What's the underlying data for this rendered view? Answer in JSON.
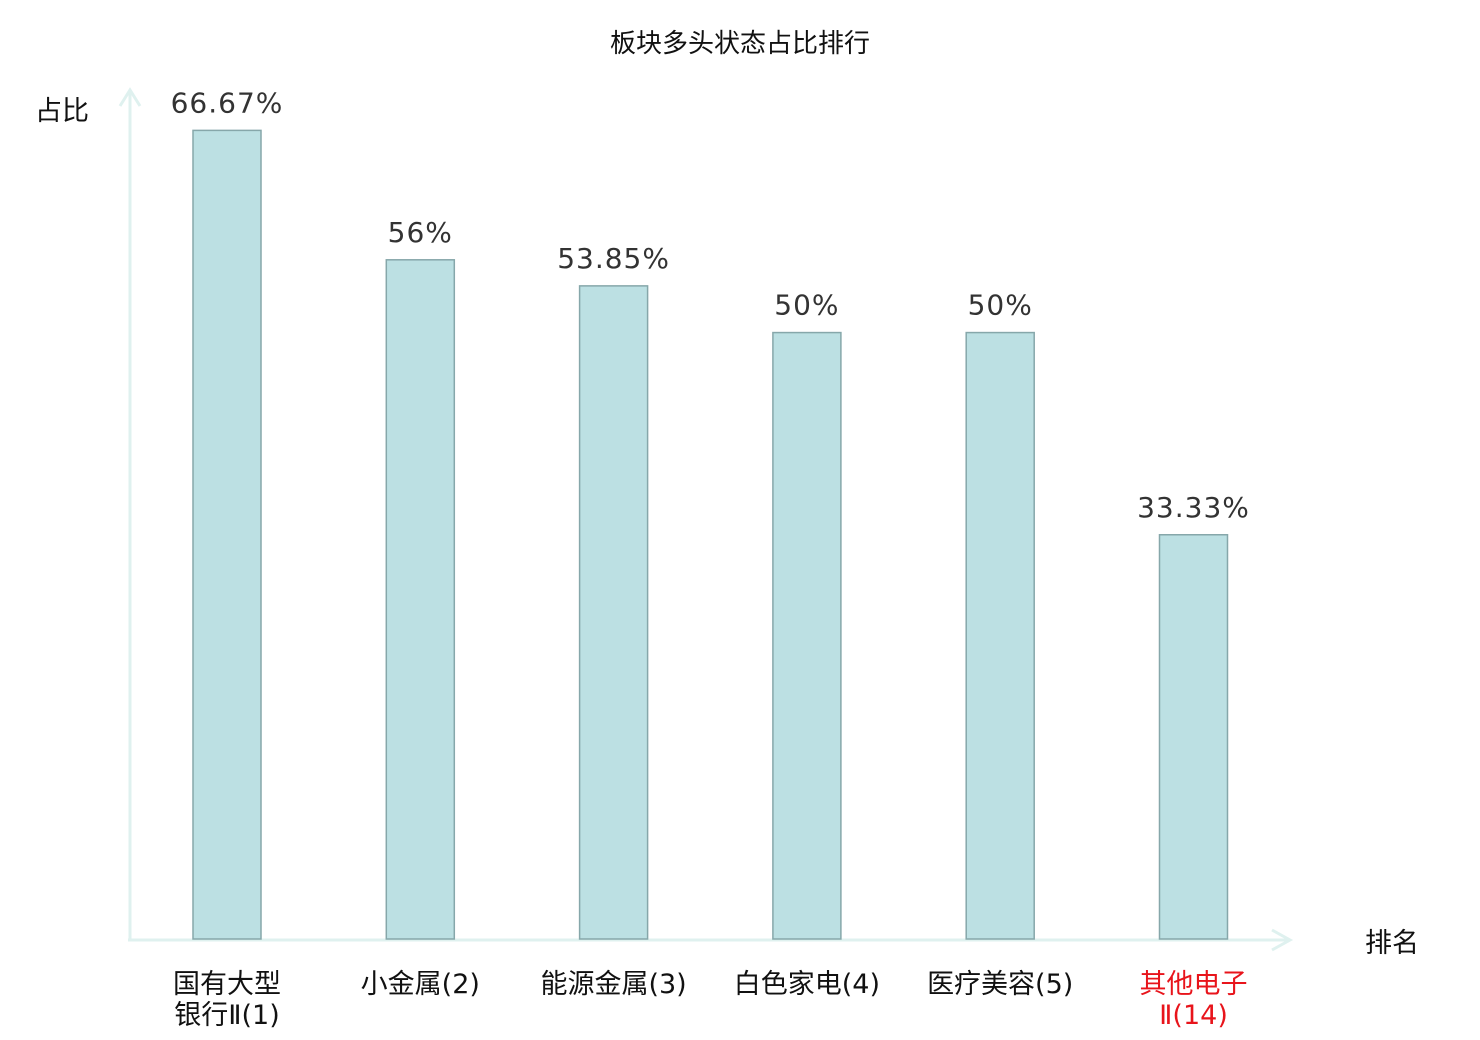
{
  "chart_data": {
    "type": "bar",
    "title": "板块多头状态占比排行",
    "ylabel": "占比",
    "xlabel": "排名",
    "ylim": [
      0,
      70
    ],
    "grid": false,
    "categories": [
      [
        "国有大型",
        "银行Ⅱ(1)"
      ],
      [
        "小金属(2)"
      ],
      [
        "能源金属(3)"
      ],
      [
        "白色家电(4)"
      ],
      [
        "医疗美容(5)"
      ],
      [
        "其他电子",
        "Ⅱ(14)"
      ]
    ],
    "values": [
      66.67,
      56,
      53.85,
      50,
      50,
      33.33
    ],
    "value_labels": [
      "66.67%",
      "56%",
      "53.85%",
      "50%",
      "50%",
      "33.33%"
    ],
    "highlight_index": 5,
    "colors": {
      "bar_fill": "#bce0e3",
      "bar_stroke": "#86a7aa",
      "axis": "#dff1ef",
      "highlight_text": "#e8141b"
    }
  }
}
